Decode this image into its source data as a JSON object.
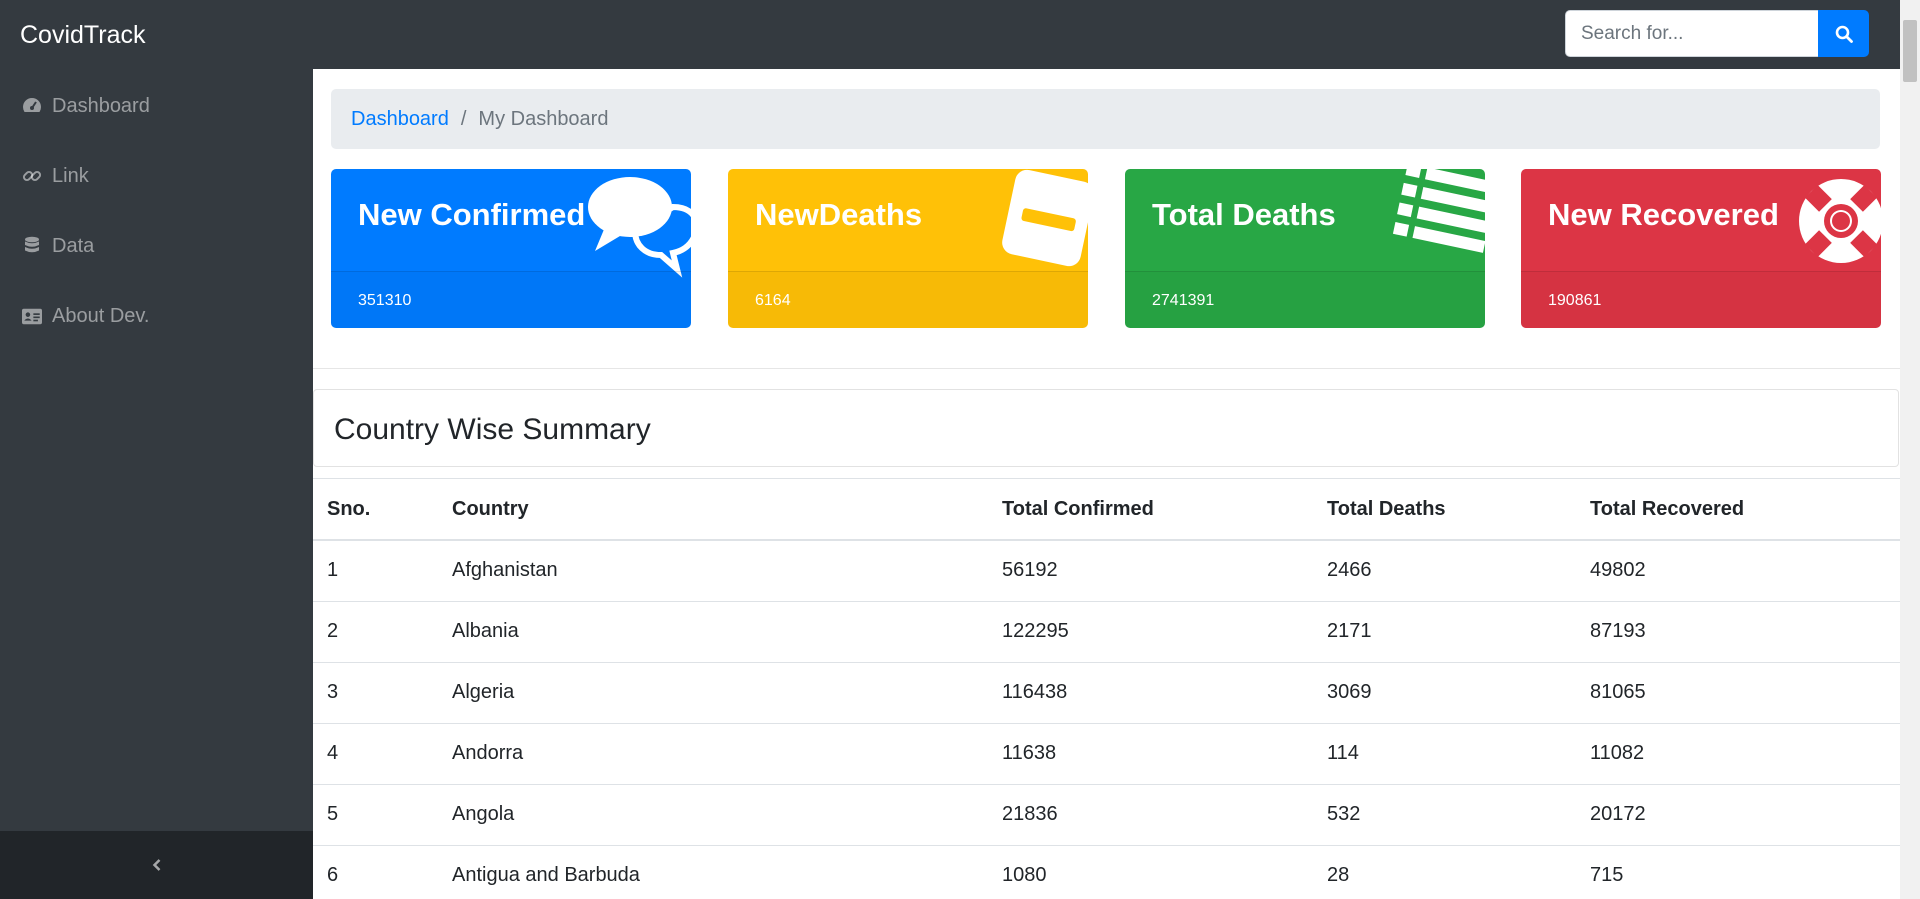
{
  "app": {
    "brand": "CovidTrack"
  },
  "search": {
    "placeholder": "Search for..."
  },
  "sidebar": {
    "items": [
      {
        "label": "Dashboard",
        "icon": "tachometer-icon"
      },
      {
        "label": "Link",
        "icon": "link-icon"
      },
      {
        "label": "Data",
        "icon": "database-icon"
      },
      {
        "label": "About Dev.",
        "icon": "id-card-icon"
      }
    ],
    "toggle_icon": "chevron-left-icon"
  },
  "breadcrumb": {
    "link": "Dashboard",
    "separator": "/",
    "active": "My Dashboard"
  },
  "cards": [
    {
      "title": "New Confirmed",
      "value": "351310",
      "color": "#007bff",
      "icon": "comments-icon"
    },
    {
      "title": "NewDeaths",
      "value": "6164",
      "color": "#ffc107",
      "icon": "minus-square-icon"
    },
    {
      "title": "Total Deaths",
      "value": "2741391",
      "color": "#28a745",
      "icon": "list-icon"
    },
    {
      "title": "New Recovered",
      "value": "190861",
      "color": "#dc3545",
      "icon": "life-ring-icon"
    }
  ],
  "summary": {
    "title": "Country Wise Summary"
  },
  "table": {
    "headers": [
      "Sno.",
      "Country",
      "Total Confirmed",
      "Total Deaths",
      "Total Recovered"
    ],
    "rows": [
      [
        "1",
        "Afghanistan",
        "56192",
        "2466",
        "49802"
      ],
      [
        "2",
        "Albania",
        "122295",
        "2171",
        "87193"
      ],
      [
        "3",
        "Algeria",
        "116438",
        "3069",
        "81065"
      ],
      [
        "4",
        "Andorra",
        "11638",
        "114",
        "11082"
      ],
      [
        "5",
        "Angola",
        "21836",
        "532",
        "20172"
      ],
      [
        "6",
        "Antigua and Barbuda",
        "1080",
        "28",
        "715"
      ]
    ]
  }
}
